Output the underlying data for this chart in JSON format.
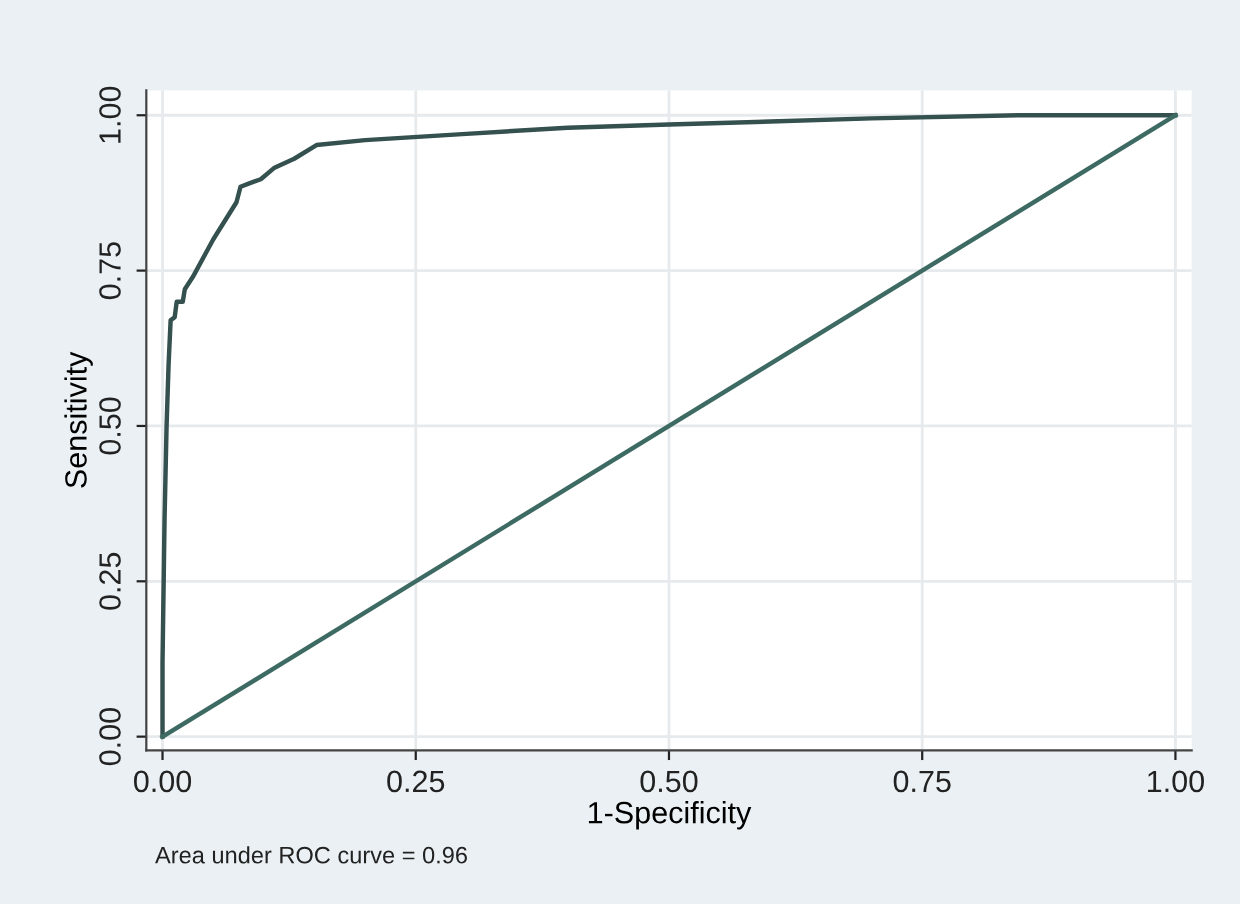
{
  "chart_data": {
    "type": "line",
    "xlabel": "1-Specificity",
    "ylabel": "Sensitivity",
    "annotations": [
      "Area under ROC curve = 0.96"
    ],
    "series": [
      {
        "color": "#34504f",
        "x": [
          0,
          0,
          0.002,
          0.004,
          0.006,
          0.008,
          0.012,
          0.014,
          0.02,
          0.022,
          0.03,
          0.05,
          0.073,
          0.077,
          0.085,
          0.097,
          0.11,
          0.13,
          0.152,
          0.2,
          0.3,
          0.4,
          0.5,
          0.6,
          0.7,
          0.845,
          1.0
        ],
        "values": [
          0,
          0.12,
          0.35,
          0.5,
          0.6,
          0.67,
          0.675,
          0.7,
          0.7,
          0.72,
          0.74,
          0.8,
          0.86,
          0.885,
          0.89,
          0.897,
          0.915,
          0.93,
          0.952,
          0.96,
          0.97,
          0.98,
          0.985,
          0.99,
          0.995,
          1.0,
          1.0
        ]
      },
      {
        "color": "#3d6a62",
        "x": [
          0,
          1
        ],
        "values": [
          0,
          1
        ]
      }
    ],
    "xlim": [
      -0.016,
      1.016
    ],
    "ylim": [
      -0.022,
      1.04
    ],
    "xticks": [
      {
        "value": 0,
        "label": "0.00"
      },
      0.25,
      {
        "value": 0.5,
        "label": "0.50"
      },
      0.75,
      {
        "value": 1,
        "label": "1.00"
      }
    ],
    "yticks": [
      {
        "value": 0,
        "label": "0.00"
      },
      0.25,
      {
        "value": 0.5,
        "label": "0.50"
      },
      0.75,
      {
        "value": 1,
        "label": "1.00"
      }
    ],
    "grid": true,
    "legend": false,
    "marker": "none",
    "line_style": "solid"
  }
}
